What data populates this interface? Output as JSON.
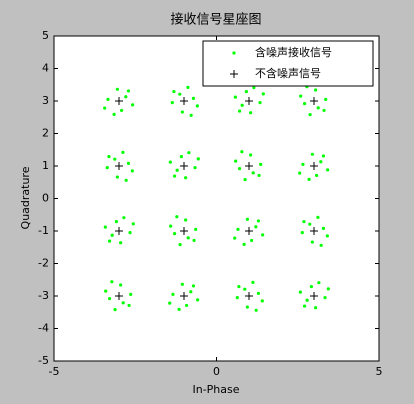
{
  "chart_data": {
    "type": "scatter",
    "title": "接收信号星座图",
    "xlabel": "In-Phase",
    "ylabel": "Quadrature",
    "xlim": [
      -5,
      5
    ],
    "ylim": [
      -5,
      5
    ],
    "xticks": [
      -5,
      0,
      5
    ],
    "yticks": [
      -5,
      -4,
      -3,
      -2,
      -1,
      0,
      1,
      2,
      3,
      4,
      5
    ],
    "legend": "upper right",
    "series": [
      {
        "name": "含噪声接收信号",
        "color": "#00ff00",
        "marker": ".",
        "x": [
          -2.79,
          -3.34,
          -2.92,
          -3.15,
          -2.58,
          -3.05,
          -2.71,
          -3.44,
          -1.13,
          -1.05,
          -0.71,
          -0.59,
          -0.88,
          -1.36,
          -1.31,
          -0.78,
          0.79,
          1.34,
          0.92,
          1.15,
          0.58,
          1.05,
          0.71,
          1.44,
          3.13,
          3.05,
          2.71,
          2.59,
          2.88,
          3.36,
          3.31,
          2.78,
          -3.13,
          -3.05,
          -2.71,
          -2.59,
          -2.88,
          -3.36,
          -3.31,
          -2.78,
          -1.21,
          -0.66,
          -1.08,
          -0.85,
          -1.42,
          -0.95,
          -1.29,
          -0.56,
          1.13,
          1.05,
          0.71,
          0.59,
          0.88,
          1.36,
          1.31,
          0.78,
          3.21,
          2.66,
          3.08,
          2.85,
          3.42,
          2.95,
          3.29,
          2.56,
          -3.21,
          -2.66,
          -3.08,
          -2.85,
          -3.42,
          -2.95,
          -3.29,
          -2.56,
          -0.87,
          -0.95,
          -1.29,
          -1.41,
          -1.12,
          -0.64,
          -0.69,
          -1.22,
          1.21,
          0.66,
          1.08,
          0.85,
          1.42,
          0.95,
          1.29,
          0.56,
          2.87,
          2.95,
          3.29,
          3.41,
          3.12,
          2.64,
          2.69,
          3.22,
          -2.87,
          -2.95,
          -3.29,
          -3.41,
          -3.12,
          -2.64,
          -2.69,
          -3.22,
          -0.79,
          -1.34,
          -0.92,
          -1.15,
          -0.58,
          -1.05,
          -0.71,
          -1.44,
          0.87,
          0.95,
          1.29,
          1.41,
          1.12,
          0.64,
          0.69,
          1.22,
          2.79,
          3.34,
          2.92,
          3.15,
          2.58,
          3.05,
          2.71,
          3.44
        ],
        "values": [
          3.13,
          3.05,
          2.71,
          2.59,
          2.88,
          3.36,
          3.31,
          2.78,
          3.21,
          2.66,
          3.08,
          2.85,
          3.42,
          2.95,
          3.29,
          2.56,
          2.87,
          2.95,
          3.29,
          3.41,
          3.12,
          2.64,
          2.69,
          3.22,
          2.79,
          3.34,
          2.92,
          3.15,
          2.58,
          3.05,
          2.71,
          3.44,
          1.21,
          0.66,
          1.08,
          0.85,
          1.42,
          0.95,
          1.29,
          0.56,
          0.87,
          0.95,
          1.29,
          1.41,
          1.12,
          0.64,
          0.69,
          1.22,
          0.79,
          1.34,
          0.92,
          1.15,
          0.58,
          1.05,
          0.71,
          1.44,
          1.13,
          1.05,
          0.71,
          0.59,
          0.88,
          1.36,
          1.31,
          0.78,
          -1.13,
          -1.05,
          -0.71,
          -0.59,
          -0.88,
          -1.36,
          -1.31,
          -0.78,
          -1.21,
          -0.66,
          -1.08,
          -0.85,
          -1.42,
          -0.95,
          -1.29,
          -0.56,
          -0.87,
          -0.95,
          -1.29,
          -1.41,
          -1.12,
          -0.64,
          -0.69,
          -1.22,
          -0.79,
          -1.34,
          -0.92,
          -1.15,
          -0.58,
          -1.05,
          -0.71,
          -1.44,
          -3.21,
          -2.66,
          -3.08,
          -2.85,
          -3.42,
          -2.95,
          -3.29,
          -2.56,
          -2.87,
          -2.95,
          -3.29,
          -3.41,
          -3.12,
          -2.64,
          -2.69,
          -3.22,
          -2.79,
          -3.34,
          -2.92,
          -3.15,
          -2.58,
          -3.05,
          -2.71,
          -3.44,
          -3.13,
          -3.05,
          -2.71,
          -2.59,
          -2.88,
          -3.36,
          -3.31,
          -2.78
        ]
      },
      {
        "name": "不含噪声信号",
        "color": "#000000",
        "marker": "+",
        "x": [
          -3,
          -1,
          1,
          3,
          -3,
          -1,
          1,
          3,
          -3,
          -1,
          1,
          3,
          -3,
          -1,
          1,
          3
        ],
        "values": [
          3,
          3,
          3,
          3,
          1,
          1,
          1,
          1,
          -1,
          -1,
          -1,
          -1,
          -3,
          -3,
          -3,
          -3
        ]
      }
    ]
  }
}
